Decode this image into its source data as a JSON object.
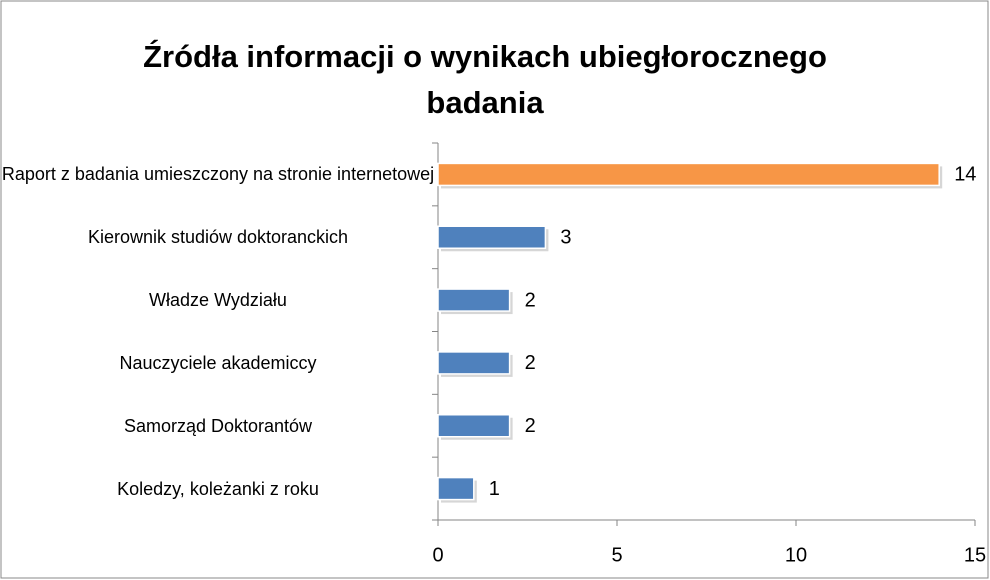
{
  "chart_data": {
    "type": "bar",
    "orientation": "horizontal",
    "title": "Źródła informacji o wynikach ubiegłorocznego badania",
    "categories": [
      "Raport z badania umieszczony na stronie internetowej",
      "Kierownik studiów doktoranckich",
      "Władze Wydziału",
      "Nauczyciele akademiccy",
      "Samorząd Doktorantów",
      "Koledzy, koleżanki z roku"
    ],
    "values": [
      14,
      3,
      2,
      2,
      2,
      1
    ],
    "colors": [
      "#f79646",
      "#4f81bd",
      "#4f81bd",
      "#4f81bd",
      "#4f81bd",
      "#4f81bd"
    ],
    "xlim": [
      0,
      15
    ],
    "xticks": [
      0,
      5,
      10,
      15
    ],
    "grid": false
  }
}
